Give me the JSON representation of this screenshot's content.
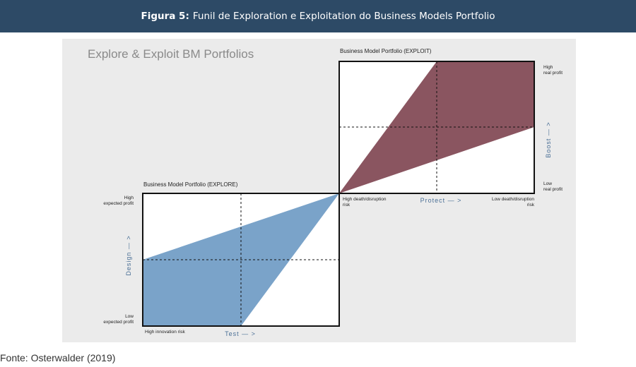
{
  "header": {
    "figure_label": "Figura 5:",
    "title": "Funil de Exploration e Exploitation do Business Models Portfolio"
  },
  "diagram": {
    "main_title": "Explore & Exploit BM Portfolios",
    "exploit": {
      "title": "Business Model Portfolio (EXPLOIT)",
      "axis_x_label": "Protect — >",
      "axis_y_label": "Boost — >",
      "x_low_line1": "High death/disruption",
      "x_low_line2": "risk",
      "x_high_line1": "Low death/disruption",
      "x_high_line2": "risk",
      "y_high_line1": "High",
      "y_high_line2": "real profit",
      "y_low_line1": "Low",
      "y_low_line2": "real profit",
      "fill_color": "#8a5560"
    },
    "explore": {
      "title": "Business Model Portfolio (EXPLORE)",
      "axis_x_label": "Test — >",
      "axis_y_label": "Design — >",
      "x_low_label": "High innovation risk",
      "y_high_line1": "High",
      "y_high_line2": "expected profit",
      "y_low_line1": "Low",
      "y_low_line2": "expected profit",
      "fill_color": "#7aa3c9"
    }
  },
  "caption": "Fonte: Osterwalder (2019)"
}
